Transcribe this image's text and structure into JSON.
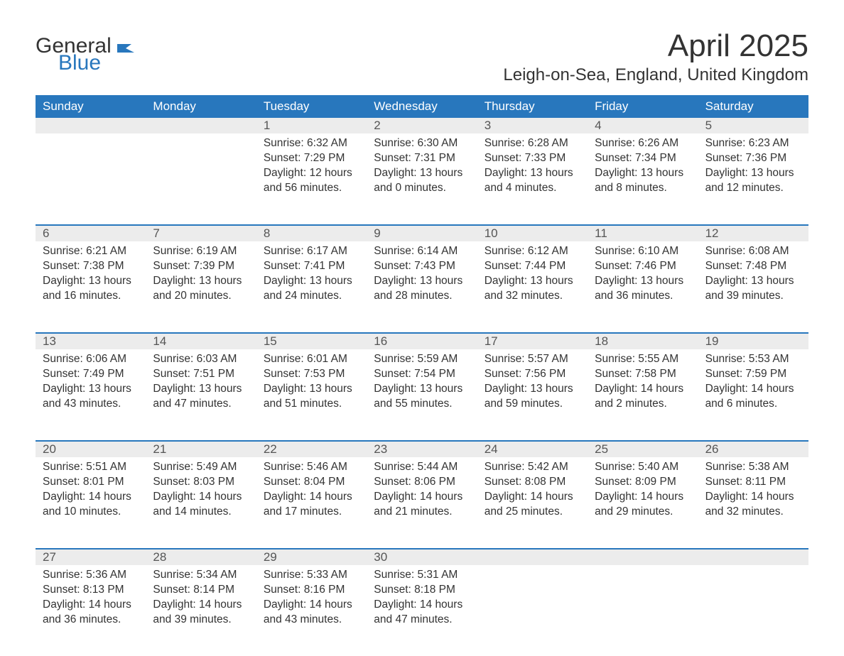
{
  "brand": {
    "general": "General",
    "blue": "Blue"
  },
  "title": "April 2025",
  "subtitle": "Leigh-on-Sea, England, United Kingdom",
  "colors": {
    "header_bg": "#2877bd",
    "header_text": "#ffffff",
    "daynum_bg": "#ececec",
    "border": "#2877bd",
    "body_text": "#333333",
    "page_bg": "#ffffff"
  },
  "day_headers": [
    "Sunday",
    "Monday",
    "Tuesday",
    "Wednesday",
    "Thursday",
    "Friday",
    "Saturday"
  ],
  "weeks": [
    {
      "nums": [
        "",
        "",
        "1",
        "2",
        "3",
        "4",
        "5"
      ],
      "days": [
        {},
        {},
        {
          "sunrise": "Sunrise: 6:32 AM",
          "sunset": "Sunset: 7:29 PM",
          "dl1": "Daylight: 12 hours",
          "dl2": "and 56 minutes."
        },
        {
          "sunrise": "Sunrise: 6:30 AM",
          "sunset": "Sunset: 7:31 PM",
          "dl1": "Daylight: 13 hours",
          "dl2": "and 0 minutes."
        },
        {
          "sunrise": "Sunrise: 6:28 AM",
          "sunset": "Sunset: 7:33 PM",
          "dl1": "Daylight: 13 hours",
          "dl2": "and 4 minutes."
        },
        {
          "sunrise": "Sunrise: 6:26 AM",
          "sunset": "Sunset: 7:34 PM",
          "dl1": "Daylight: 13 hours",
          "dl2": "and 8 minutes."
        },
        {
          "sunrise": "Sunrise: 6:23 AM",
          "sunset": "Sunset: 7:36 PM",
          "dl1": "Daylight: 13 hours",
          "dl2": "and 12 minutes."
        }
      ]
    },
    {
      "nums": [
        "6",
        "7",
        "8",
        "9",
        "10",
        "11",
        "12"
      ],
      "days": [
        {
          "sunrise": "Sunrise: 6:21 AM",
          "sunset": "Sunset: 7:38 PM",
          "dl1": "Daylight: 13 hours",
          "dl2": "and 16 minutes."
        },
        {
          "sunrise": "Sunrise: 6:19 AM",
          "sunset": "Sunset: 7:39 PM",
          "dl1": "Daylight: 13 hours",
          "dl2": "and 20 minutes."
        },
        {
          "sunrise": "Sunrise: 6:17 AM",
          "sunset": "Sunset: 7:41 PM",
          "dl1": "Daylight: 13 hours",
          "dl2": "and 24 minutes."
        },
        {
          "sunrise": "Sunrise: 6:14 AM",
          "sunset": "Sunset: 7:43 PM",
          "dl1": "Daylight: 13 hours",
          "dl2": "and 28 minutes."
        },
        {
          "sunrise": "Sunrise: 6:12 AM",
          "sunset": "Sunset: 7:44 PM",
          "dl1": "Daylight: 13 hours",
          "dl2": "and 32 minutes."
        },
        {
          "sunrise": "Sunrise: 6:10 AM",
          "sunset": "Sunset: 7:46 PM",
          "dl1": "Daylight: 13 hours",
          "dl2": "and 36 minutes."
        },
        {
          "sunrise": "Sunrise: 6:08 AM",
          "sunset": "Sunset: 7:48 PM",
          "dl1": "Daylight: 13 hours",
          "dl2": "and 39 minutes."
        }
      ]
    },
    {
      "nums": [
        "13",
        "14",
        "15",
        "16",
        "17",
        "18",
        "19"
      ],
      "days": [
        {
          "sunrise": "Sunrise: 6:06 AM",
          "sunset": "Sunset: 7:49 PM",
          "dl1": "Daylight: 13 hours",
          "dl2": "and 43 minutes."
        },
        {
          "sunrise": "Sunrise: 6:03 AM",
          "sunset": "Sunset: 7:51 PM",
          "dl1": "Daylight: 13 hours",
          "dl2": "and 47 minutes."
        },
        {
          "sunrise": "Sunrise: 6:01 AM",
          "sunset": "Sunset: 7:53 PM",
          "dl1": "Daylight: 13 hours",
          "dl2": "and 51 minutes."
        },
        {
          "sunrise": "Sunrise: 5:59 AM",
          "sunset": "Sunset: 7:54 PM",
          "dl1": "Daylight: 13 hours",
          "dl2": "and 55 minutes."
        },
        {
          "sunrise": "Sunrise: 5:57 AM",
          "sunset": "Sunset: 7:56 PM",
          "dl1": "Daylight: 13 hours",
          "dl2": "and 59 minutes."
        },
        {
          "sunrise": "Sunrise: 5:55 AM",
          "sunset": "Sunset: 7:58 PM",
          "dl1": "Daylight: 14 hours",
          "dl2": "and 2 minutes."
        },
        {
          "sunrise": "Sunrise: 5:53 AM",
          "sunset": "Sunset: 7:59 PM",
          "dl1": "Daylight: 14 hours",
          "dl2": "and 6 minutes."
        }
      ]
    },
    {
      "nums": [
        "20",
        "21",
        "22",
        "23",
        "24",
        "25",
        "26"
      ],
      "days": [
        {
          "sunrise": "Sunrise: 5:51 AM",
          "sunset": "Sunset: 8:01 PM",
          "dl1": "Daylight: 14 hours",
          "dl2": "and 10 minutes."
        },
        {
          "sunrise": "Sunrise: 5:49 AM",
          "sunset": "Sunset: 8:03 PM",
          "dl1": "Daylight: 14 hours",
          "dl2": "and 14 minutes."
        },
        {
          "sunrise": "Sunrise: 5:46 AM",
          "sunset": "Sunset: 8:04 PM",
          "dl1": "Daylight: 14 hours",
          "dl2": "and 17 minutes."
        },
        {
          "sunrise": "Sunrise: 5:44 AM",
          "sunset": "Sunset: 8:06 PM",
          "dl1": "Daylight: 14 hours",
          "dl2": "and 21 minutes."
        },
        {
          "sunrise": "Sunrise: 5:42 AM",
          "sunset": "Sunset: 8:08 PM",
          "dl1": "Daylight: 14 hours",
          "dl2": "and 25 minutes."
        },
        {
          "sunrise": "Sunrise: 5:40 AM",
          "sunset": "Sunset: 8:09 PM",
          "dl1": "Daylight: 14 hours",
          "dl2": "and 29 minutes."
        },
        {
          "sunrise": "Sunrise: 5:38 AM",
          "sunset": "Sunset: 8:11 PM",
          "dl1": "Daylight: 14 hours",
          "dl2": "and 32 minutes."
        }
      ]
    },
    {
      "nums": [
        "27",
        "28",
        "29",
        "30",
        "",
        "",
        ""
      ],
      "days": [
        {
          "sunrise": "Sunrise: 5:36 AM",
          "sunset": "Sunset: 8:13 PM",
          "dl1": "Daylight: 14 hours",
          "dl2": "and 36 minutes."
        },
        {
          "sunrise": "Sunrise: 5:34 AM",
          "sunset": "Sunset: 8:14 PM",
          "dl1": "Daylight: 14 hours",
          "dl2": "and 39 minutes."
        },
        {
          "sunrise": "Sunrise: 5:33 AM",
          "sunset": "Sunset: 8:16 PM",
          "dl1": "Daylight: 14 hours",
          "dl2": "and 43 minutes."
        },
        {
          "sunrise": "Sunrise: 5:31 AM",
          "sunset": "Sunset: 8:18 PM",
          "dl1": "Daylight: 14 hours",
          "dl2": "and 47 minutes."
        },
        {},
        {},
        {}
      ]
    }
  ]
}
